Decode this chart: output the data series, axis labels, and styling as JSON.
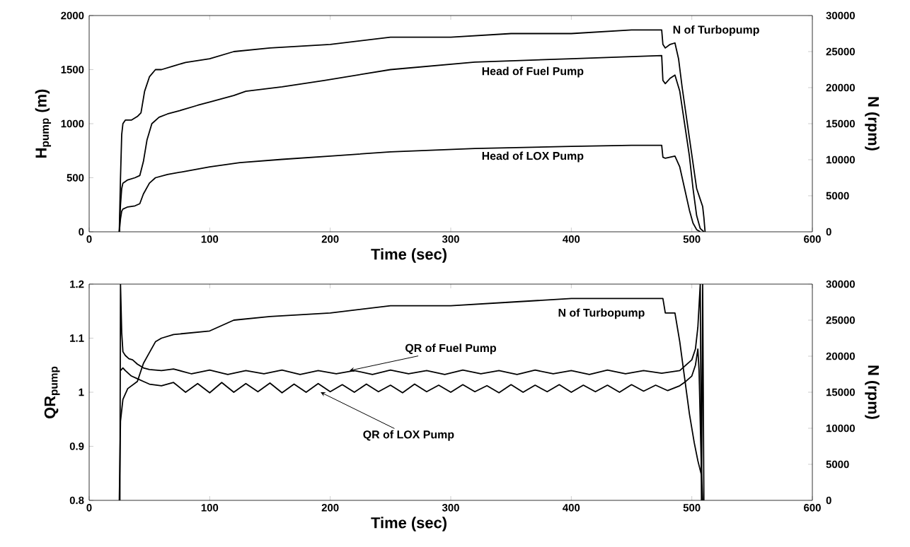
{
  "chart_data": [
    {
      "type": "line",
      "xlabel": "Time (sec)",
      "ylabel": "H$_{pump}$ (m)",
      "y2label": "N (rpm)",
      "xlim": [
        0,
        600
      ],
      "xticks": [
        0,
        100,
        200,
        300,
        400,
        500,
        600
      ],
      "ylim": [
        0,
        2000
      ],
      "yticks": [
        0,
        500,
        1000,
        1500,
        2000
      ],
      "y2lim": [
        0,
        30000
      ],
      "y2ticks": [
        0,
        5000,
        10000,
        15000,
        20000,
        25000,
        30000
      ],
      "series": [
        {
          "name": "N of Turbopump",
          "color": "#000000",
          "axis": "y2",
          "x": [
            25,
            26,
            27,
            28,
            30,
            35,
            40,
            43,
            46,
            50,
            55,
            60,
            70,
            80,
            100,
            120,
            150,
            200,
            250,
            300,
            350,
            400,
            450,
            475,
            476,
            478,
            482,
            486,
            489,
            492,
            495,
            498,
            501,
            504,
            507,
            509,
            510,
            511
          ],
          "values": [
            0,
            7500,
            13500,
            15000,
            15500,
            15500,
            16000,
            16500,
            19500,
            21500,
            22500,
            22500,
            23000,
            23500,
            24000,
            25000,
            25500,
            26000,
            27000,
            27000,
            27500,
            27500,
            28000,
            28000,
            26000,
            25500,
            26000,
            26200,
            24000,
            20000,
            16500,
            13000,
            9500,
            6000,
            4500,
            3500,
            2000,
            0
          ]
        },
        {
          "name": "Head of Fuel Pump",
          "color": "#000000",
          "x": [
            25,
            26,
            27,
            28,
            32,
            38,
            42,
            45,
            48,
            52,
            58,
            65,
            75,
            90,
            100,
            120,
            130,
            160,
            195,
            250,
            320,
            400,
            450,
            475,
            476,
            478,
            482,
            486,
            490,
            494,
            498,
            501,
            504,
            507,
            510
          ],
          "values": [
            0,
            250,
            400,
            450,
            480,
            500,
            520,
            650,
            850,
            1000,
            1060,
            1090,
            1120,
            1170,
            1200,
            1260,
            1300,
            1340,
            1400,
            1500,
            1570,
            1600,
            1620,
            1630,
            1400,
            1370,
            1420,
            1450,
            1300,
            1000,
            700,
            400,
            150,
            30,
            0
          ]
        },
        {
          "name": "Head of LOX Pump",
          "color": "#000000",
          "x": [
            25,
            26,
            27,
            28,
            32,
            38,
            42,
            45,
            50,
            55,
            65,
            80,
            100,
            125,
            160,
            200,
            250,
            320,
            400,
            450,
            475,
            476,
            478,
            482,
            486,
            490,
            494,
            498,
            501,
            504,
            507
          ],
          "values": [
            0,
            120,
            190,
            210,
            230,
            240,
            260,
            350,
            450,
            500,
            530,
            560,
            600,
            640,
            670,
            700,
            740,
            770,
            790,
            800,
            800,
            690,
            680,
            690,
            700,
            600,
            400,
            200,
            80,
            20,
            0
          ]
        }
      ]
    },
    {
      "type": "line",
      "xlabel": "Time (sec)",
      "ylabel": "QR$_{pump}$",
      "y2label": "N (rpm)",
      "xlim": [
        0,
        600
      ],
      "xticks": [
        0,
        100,
        200,
        300,
        400,
        500,
        600
      ],
      "ylim": [
        0.8,
        1.2
      ],
      "yticks": [
        0.8,
        0.9,
        1,
        1.1,
        1.2
      ],
      "y2lim": [
        0,
        30000
      ],
      "y2ticks": [
        0,
        5000,
        10000,
        15000,
        20000,
        25000,
        30000
      ],
      "series": [
        {
          "name": "N of Turbopump",
          "color": "#000000",
          "axis": "y2",
          "x": [
            25,
            26,
            28,
            32,
            40,
            45,
            50,
            55,
            60,
            70,
            100,
            120,
            150,
            200,
            250,
            300,
            350,
            400,
            450,
            476,
            478,
            482,
            486,
            490,
            494,
            498,
            502,
            505,
            508
          ],
          "values": [
            0,
            11000,
            14000,
            15500,
            16500,
            19000,
            20500,
            22000,
            22500,
            23000,
            23500,
            25000,
            25500,
            26000,
            27000,
            27000,
            27500,
            28000,
            28000,
            28000,
            26000,
            26000,
            26000,
            22000,
            17000,
            12000,
            8000,
            5500,
            3500
          ]
        },
        {
          "color": "#000000",
          "x": [
            25.5,
            26,
            27,
            28,
            30,
            33,
            36,
            40,
            45,
            50,
            60,
            70,
            85,
            100,
            115,
            130,
            145,
            160,
            175,
            190,
            205,
            220,
            235,
            250,
            265,
            280,
            295,
            310,
            325,
            340,
            355,
            370,
            385,
            400,
            415,
            430,
            445,
            460,
            475,
            490,
            495,
            500,
            503,
            505,
            507,
            508,
            509,
            510
          ],
          "values": [
            0.8,
            1.2,
            1.11,
            1.075,
            1.068,
            1.062,
            1.06,
            1.052,
            1.045,
            1.042,
            1.04,
            1.043,
            1.034,
            1.041,
            1.033,
            1.04,
            1.034,
            1.041,
            1.033,
            1.04,
            1.034,
            1.04,
            1.033,
            1.041,
            1.034,
            1.04,
            1.033,
            1.041,
            1.034,
            1.04,
            1.033,
            1.041,
            1.034,
            1.04,
            1.033,
            1.041,
            1.034,
            1.04,
            1.035,
            1.04,
            1.05,
            1.06,
            1.08,
            1.12,
            1.2,
            0.8,
            1.2,
            0.8
          ]
        },
        {
          "color": "#000000",
          "x": [
            26,
            28,
            30,
            35,
            40,
            45,
            50,
            60,
            70,
            80,
            90,
            100,
            110,
            120,
            130,
            140,
            150,
            160,
            170,
            180,
            190,
            200,
            210,
            220,
            230,
            240,
            250,
            260,
            270,
            280,
            290,
            300,
            310,
            320,
            330,
            340,
            350,
            360,
            370,
            380,
            390,
            400,
            410,
            420,
            430,
            440,
            450,
            460,
            470,
            480,
            490,
            495,
            500,
            503,
            505,
            506,
            508,
            509
          ],
          "values": [
            1.04,
            1.045,
            1.04,
            1.03,
            1.025,
            1.02,
            1.015,
            1.012,
            1.018,
            1.0,
            1.016,
            0.999,
            1.018,
            1.0,
            1.016,
            1.001,
            1.017,
            0.999,
            1.015,
            1.0,
            1.016,
            1.001,
            1.014,
            1.0,
            1.015,
            1.001,
            1.013,
            0.999,
            1.015,
            1.001,
            1.013,
            1.0,
            1.014,
            1.001,
            1.012,
            0.999,
            1.014,
            1.0,
            1.013,
            1.001,
            1.014,
            1.0,
            1.013,
            1.001,
            1.013,
            1.0,
            1.014,
            1.002,
            1.013,
            1.003,
            1.012,
            1.02,
            1.03,
            1.05,
            1.08,
            1.04,
            0.85,
            0.8
          ]
        }
      ],
      "annotations": [
        {
          "text": "QR of Fuel Pump",
          "x": 216,
          "y": 1.04
        },
        {
          "text": "QR of LOX Pump",
          "x": 192,
          "y": 1.0
        }
      ]
    }
  ]
}
